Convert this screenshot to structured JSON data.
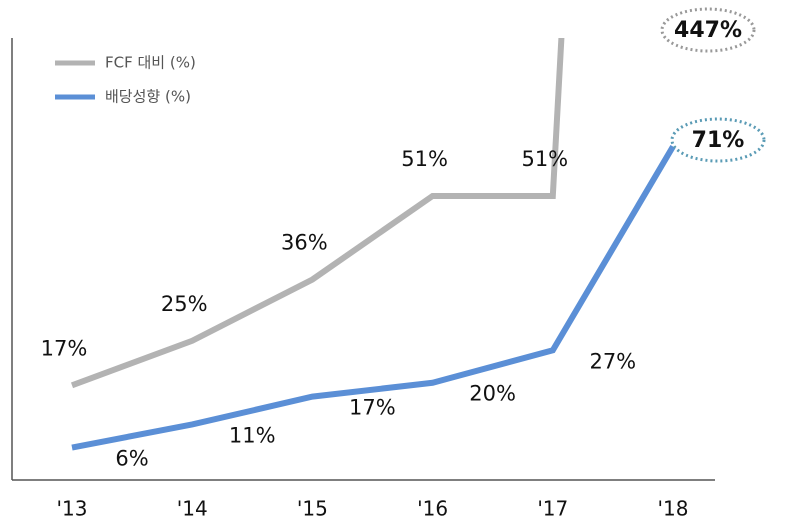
{
  "chart_data": {
    "type": "line",
    "categories": [
      "'13",
      "'14",
      "'15",
      "'16",
      "'17",
      "'18"
    ],
    "series": [
      {
        "name": "FCF 대비 (%)",
        "color": "#b3b3b3",
        "axis": "y2",
        "values": [
          17,
          25,
          36,
          51,
          51,
          447
        ],
        "value_labels": [
          "17%",
          "25%",
          "36%",
          "51%",
          "51%",
          "447%"
        ]
      },
      {
        "name": "배당성향 (%)",
        "color": "#5b8fd6",
        "values": [
          6,
          11,
          17,
          20,
          27,
          71
        ],
        "value_labels": [
          "6%",
          "11%",
          "17%",
          "20%",
          "27%",
          "71%"
        ]
      }
    ],
    "ylim": [
      -1,
      94
    ],
    "y2lim": [
      0,
      79
    ],
    "legend": "upper left"
  }
}
